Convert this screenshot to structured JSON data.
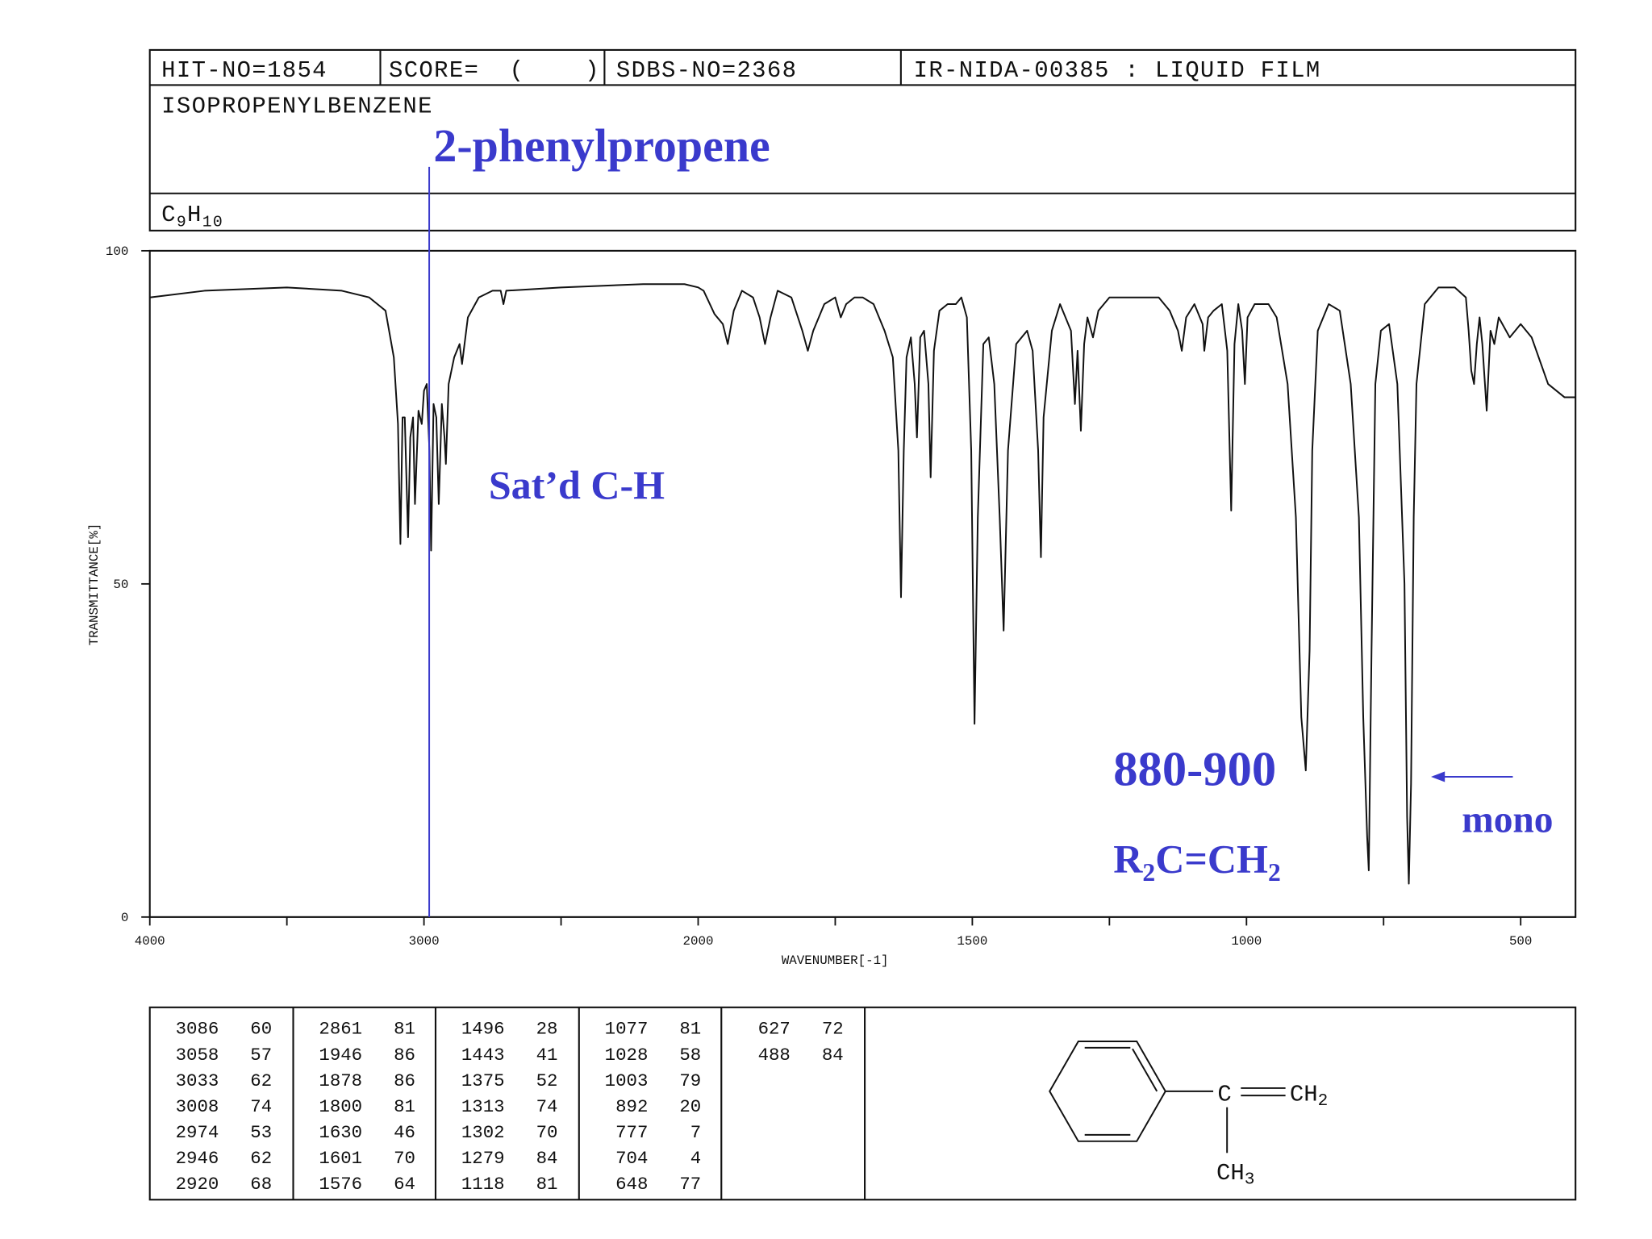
{
  "header": {
    "hit_no": "HIT-NO=1854",
    "score": "SCORE=  (    )",
    "sdbs_no": "SDBS-NO=2368",
    "method": "IR-NIDA-00385 : LIQUID FILM",
    "compound": "ISOPROPENYLBENZENE",
    "formula": [
      "C",
      "9",
      "H",
      "10"
    ]
  },
  "annotations": {
    "name": "2-phenylpropene",
    "satd": "Sat’d C-H",
    "range": "880-900",
    "group": [
      "R",
      "2",
      "C=CH",
      "2"
    ],
    "mono": "mono"
  },
  "chart_data": {
    "type": "line",
    "color": "#111111",
    "x_label": "WAVENUMBER[-1]",
    "y_label": "TRANSMITTANCE[%]",
    "xlim": [
      4000,
      400
    ],
    "xscale_break": 2000,
    "xticks": [
      4000,
      3000,
      2000,
      1500,
      1000,
      500
    ],
    "xticks_minor": [
      3500,
      2500,
      1750,
      1250,
      750
    ],
    "ylim": [
      0,
      100
    ],
    "yticks": [
      0,
      50,
      100
    ],
    "x": [
      4000,
      3800,
      3500,
      3300,
      3200,
      3140,
      3110,
      3095,
      3086,
      3078,
      3070,
      3058,
      3050,
      3040,
      3033,
      3020,
      3008,
      3000,
      2990,
      2980,
      2974,
      2965,
      2955,
      2946,
      2935,
      2925,
      2920,
      2910,
      2890,
      2870,
      2861,
      2840,
      2800,
      2750,
      2720,
      2710,
      2700,
      2500,
      2200,
      2050,
      2000,
      1990,
      1970,
      1955,
      1946,
      1935,
      1920,
      1900,
      1888,
      1878,
      1868,
      1855,
      1830,
      1810,
      1800,
      1790,
      1770,
      1750,
      1740,
      1730,
      1715,
      1700,
      1680,
      1660,
      1645,
      1635,
      1630,
      1625,
      1620,
      1612,
      1605,
      1601,
      1595,
      1588,
      1580,
      1576,
      1570,
      1560,
      1545,
      1530,
      1520,
      1510,
      1502,
      1496,
      1490,
      1480,
      1470,
      1460,
      1450,
      1443,
      1435,
      1420,
      1400,
      1390,
      1380,
      1375,
      1370,
      1355,
      1340,
      1320,
      1313,
      1308,
      1302,
      1296,
      1290,
      1280,
      1270,
      1250,
      1200,
      1160,
      1140,
      1125,
      1118,
      1110,
      1095,
      1080,
      1077,
      1070,
      1060,
      1045,
      1035,
      1028,
      1022,
      1015,
      1008,
      1003,
      998,
      985,
      960,
      945,
      925,
      910,
      900,
      892,
      885,
      880,
      870,
      850,
      830,
      810,
      795,
      787,
      780,
      777,
      772,
      765,
      755,
      740,
      725,
      712,
      707,
      704,
      700,
      695,
      690,
      675,
      650,
      620,
      600,
      595,
      590,
      585,
      580,
      575,
      570,
      562,
      555,
      548,
      540,
      520,
      500,
      480,
      450,
      420,
      400
    ],
    "values": [
      93,
      94,
      94.5,
      94,
      93,
      91,
      84,
      74,
      56,
      75,
      75,
      57,
      72,
      75,
      62,
      76,
      74,
      79,
      80,
      70,
      55,
      77,
      75,
      62,
      77,
      72,
      68,
      80,
      84,
      86,
      83,
      90,
      93,
      94,
      94,
      92,
      94,
      94.5,
      95,
      95,
      94.5,
      94,
      90.5,
      89,
      86,
      91,
      94,
      93,
      90,
      86,
      90,
      94,
      93,
      88,
      85,
      88,
      92,
      93,
      90,
      92,
      93,
      93,
      92,
      88,
      84,
      70,
      48,
      70,
      84,
      87,
      80,
      72,
      87,
      88,
      80,
      66,
      85,
      91,
      92,
      92,
      93,
      90,
      70,
      29,
      60,
      86,
      87,
      80,
      60,
      43,
      70,
      86,
      88,
      85,
      70,
      54,
      75,
      88,
      92,
      88,
      77,
      85,
      73,
      86,
      90,
      87,
      91,
      93,
      93,
      93,
      91,
      88,
      85,
      90,
      92,
      89,
      85,
      90,
      91,
      92,
      85,
      61,
      86,
      92,
      88,
      80,
      90,
      92,
      92,
      90,
      80,
      60,
      30,
      22,
      40,
      70,
      88,
      92,
      91,
      80,
      60,
      30,
      12,
      7,
      40,
      80,
      88,
      89,
      80,
      50,
      15,
      5,
      20,
      60,
      80,
      92,
      94.5,
      94.5,
      93,
      88,
      82,
      80,
      86,
      90,
      86,
      76,
      88,
      86,
      90,
      87,
      89,
      87,
      80,
      78,
      78
    ]
  },
  "peak_table": [
    [
      [
        3086,
        60
      ],
      [
        3058,
        57
      ],
      [
        3033,
        62
      ],
      [
        3008,
        74
      ],
      [
        2974,
        53
      ],
      [
        2946,
        62
      ],
      [
        2920,
        68
      ]
    ],
    [
      [
        2861,
        81
      ],
      [
        1946,
        86
      ],
      [
        1878,
        86
      ],
      [
        1800,
        81
      ],
      [
        1630,
        46
      ],
      [
        1601,
        70
      ],
      [
        1576,
        64
      ]
    ],
    [
      [
        1496,
        28
      ],
      [
        1443,
        41
      ],
      [
        1375,
        52
      ],
      [
        1313,
        74
      ],
      [
        1302,
        70
      ],
      [
        1279,
        84
      ],
      [
        1118,
        81
      ]
    ],
    [
      [
        1077,
        81
      ],
      [
        1028,
        58
      ],
      [
        1003,
        79
      ],
      [
        892,
        20
      ],
      [
        777,
        7
      ],
      [
        704,
        4
      ],
      [
        648,
        77
      ]
    ],
    [
      [
        627,
        72
      ],
      [
        488,
        84
      ]
    ]
  ],
  "structure": {
    "carbon": "C",
    "ch2": [
      "CH",
      "2"
    ],
    "ch3": [
      "CH",
      "3"
    ]
  }
}
